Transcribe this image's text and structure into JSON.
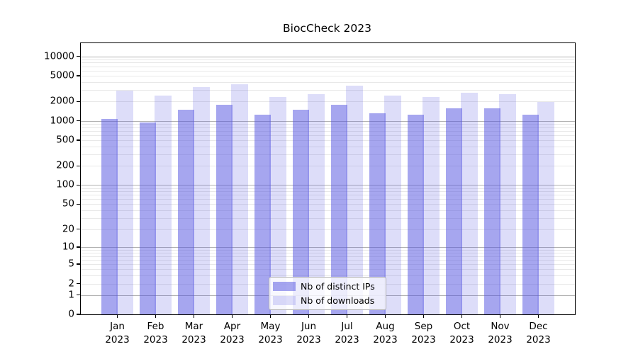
{
  "chart_data": {
    "type": "bar",
    "title": "BiocCheck 2023",
    "categories": [
      "Jan",
      "Feb",
      "Mar",
      "Apr",
      "May",
      "Jun",
      "Jul",
      "Aug",
      "Sep",
      "Oct",
      "Nov",
      "Dec"
    ],
    "category_year_line": "2023",
    "series": [
      {
        "name": "Nb of distinct IPs",
        "color": "rgba(85,85,225,0.52)",
        "values": [
          1060,
          940,
          1500,
          1795,
          1260,
          1470,
          1770,
          1315,
          1260,
          1580,
          1560,
          1250
        ]
      },
      {
        "name": "Nb of downloads",
        "color": "rgba(85,85,225,0.20)",
        "values": [
          2970,
          2470,
          3320,
          3670,
          2370,
          2600,
          3490,
          2490,
          2350,
          2735,
          2580,
          1985
        ]
      }
    ],
    "yscale": "log1p",
    "ylim": [
      0,
      16000
    ],
    "y_ticks": [
      10000,
      5000,
      2000,
      1000,
      500,
      200,
      100,
      50,
      20,
      10,
      5,
      2,
      1,
      0
    ],
    "y_major_gridlines": [
      1,
      10,
      100,
      1000,
      10000
    ],
    "y_minor_gridline_mantissas": [
      2,
      3,
      4,
      5,
      6,
      7,
      8,
      9
    ],
    "grid": true,
    "legend_position": "lower center",
    "axis_color": "#000000",
    "major_grid_color": "#b2b2b2",
    "minor_grid_color": "#e8e8e8"
  }
}
